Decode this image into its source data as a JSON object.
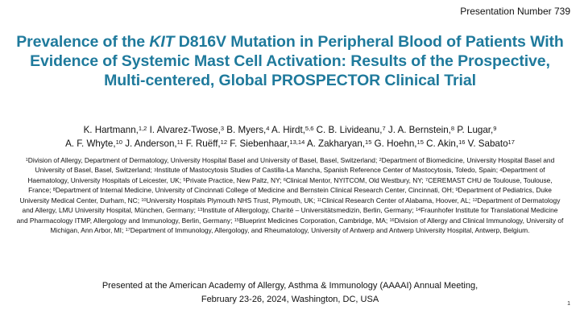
{
  "header": {
    "presentation_number": "Presentation Number 739"
  },
  "title": {
    "prefix": "Prevalence of the ",
    "gene": "KIT",
    "rest": " D816V Mutation in Peripheral Blood of Patients With Evidence of Systemic Mast Cell Activation: Results of the Prospective, Multi-centered, Global PROSPECTOR Clinical Trial"
  },
  "authors": [
    {
      "name": "K. Hartmann,",
      "sup": "1,2"
    },
    {
      "name": " I. Alvarez-Twose,",
      "sup": "3"
    },
    {
      "name": " B. Myers,",
      "sup": "4"
    },
    {
      "name": " A. Hirdt,",
      "sup": "5,6"
    },
    {
      "name": " C. B. Livideanu,",
      "sup": "7"
    },
    {
      "name": " J. A. Bernstein,",
      "sup": "8"
    },
    {
      "name": " P. Lugar,",
      "sup": "9"
    },
    {
      "name": " A. F. Whyte,",
      "sup": "10"
    },
    {
      "name": " J. Anderson,",
      "sup": "11"
    },
    {
      "name": " F. Ruëff,",
      "sup": "12"
    },
    {
      "name": " F. Siebenhaar,",
      "sup": "13,14"
    },
    {
      "name": " A. Zakharyan,",
      "sup": "15"
    },
    {
      "name": " G. Hoehn,",
      "sup": "15"
    },
    {
      "name": " C. Akin,",
      "sup": "16"
    },
    {
      "name": " V. Sabato",
      "sup": "17"
    }
  ],
  "affiliations": [
    {
      "sup": "1",
      "text": "Division of Allergy, Department of Dermatology, University Hospital Basel and University of Basel, Basel, Switzerland; "
    },
    {
      "sup": "2",
      "text": "Department of Biomedicine, University Hospital Basel and University of Basel, Basel, Switzerland; "
    },
    {
      "sup": "3",
      "text": "Institute of Mastocytosis Studies of Castilla-La Mancha, Spanish Reference Center of Mastocytosis, Toledo, Spain; "
    },
    {
      "sup": "4",
      "text": "Department of Haematology, University Hospitals of Leicester, UK; "
    },
    {
      "sup": "5",
      "text": "Private Practice, New Paltz, NY; "
    },
    {
      "sup": "6",
      "text": "Clinical Mentor, NYITCOM, Old Westbury, NY; "
    },
    {
      "sup": "7",
      "text": "CEREMAST CHU de Toulouse, Toulouse, France; "
    },
    {
      "sup": "8",
      "text": "Department of Internal Medicine, University of Cincinnati College of Medicine and Bernstein Clinical Research Center, Cincinnati, OH; "
    },
    {
      "sup": "9",
      "text": "Department of Pediatrics, Duke University Medical Center, Durham, NC; "
    },
    {
      "sup": "10",
      "text": "University Hospitals Plymouth NHS Trust, Plymouth, UK; "
    },
    {
      "sup": "11",
      "text": "Clinical Research Center of Alabama, Hoover, AL; "
    },
    {
      "sup": "12",
      "text": "Department of Dermatology and Allergy, LMU University Hospital, München, Germany; "
    },
    {
      "sup": "13",
      "text": "Institute of Allergology, Charité – Universitätsmedizin, Berlin, Germany; "
    },
    {
      "sup": "14",
      "text": "Fraunhofer Institute for Translational Medicine and Pharmacology ITMP, Allergology and Immunology, Berlin, Germany; "
    },
    {
      "sup": "15",
      "text": "Blueprint Medicines Corporation, Cambridge, MA; "
    },
    {
      "sup": "16",
      "text": "Division of Allergy and Clinical Immunology, University of Michigan, Ann Arbor, MI; "
    },
    {
      "sup": "17",
      "text": "Department of Immunology, Allergology, and Rheumatology, University of Antwerp and Antwerp University Hospital, Antwerp, Belgium."
    }
  ],
  "footer": {
    "line1": "Presented at the American Academy of Allergy, Asthma & Immunology (AAAAI) Annual Meeting,",
    "line2": "February 23-26, 2024, Washington, DC, USA"
  },
  "page_number": "1",
  "colors": {
    "title": "#1f7a9c",
    "text": "#111111",
    "background": "#ffffff"
  }
}
